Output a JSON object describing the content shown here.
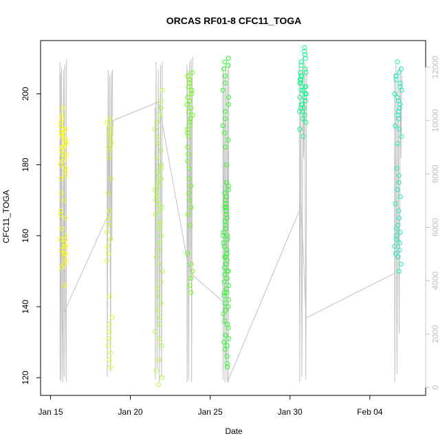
{
  "chart_data": {
    "type": "scatter",
    "title": "ORCAS RF01-8 CFC11_TOGA",
    "xlabel": "Date",
    "ylabel": "CFC11_TOGA",
    "x_range": [
      "2016-01-14T09:00",
      "2016-02-07T12:00"
    ],
    "x_ticks": [
      {
        "date": "2016-01-15",
        "label": "Jan 15"
      },
      {
        "date": "2016-01-20",
        "label": "Jan 20"
      },
      {
        "date": "2016-01-25",
        "label": "Jan 25"
      },
      {
        "date": "2016-01-30",
        "label": "Jan 30"
      },
      {
        "date": "2016-02-04",
        "label": "Feb 04"
      }
    ],
    "ylim": [
      115,
      215
    ],
    "y_ticks": [
      120,
      140,
      160,
      180,
      200
    ],
    "y2lim": [
      -300,
      13000
    ],
    "y2_ticks": [
      0,
      2000,
      4000,
      6000,
      8000,
      10000,
      12000
    ],
    "grid": false,
    "legend": "none",
    "colors": {
      "axis": "#000000",
      "altitude_line": "#c0c0c0",
      "right_axis": "#c0c0c0"
    },
    "secondary_line_description": "altitude trace (right axis)",
    "flights": [
      {
        "start": "2016-01-15T14:00",
        "end": "2016-01-16T00:00",
        "color": "#ffff00",
        "cfc11_values": [
          146,
          151,
          152,
          153,
          154,
          155,
          156,
          157,
          158,
          159,
          160,
          162,
          165,
          167,
          170,
          172,
          176,
          177,
          178,
          179,
          180,
          181,
          182,
          183,
          184,
          185,
          186,
          187,
          188,
          189,
          190,
          191,
          192,
          193,
          194,
          196,
          183,
          185,
          187,
          189,
          181,
          179,
          186,
          188,
          190,
          155,
          157,
          159,
          152,
          166
        ],
        "alt_profile": [
          [
            0,
            12200
          ],
          [
            0.03,
            300
          ],
          [
            0.1,
            11800
          ],
          [
            0.18,
            200
          ],
          [
            0.25,
            12000
          ],
          [
            0.35,
            2500
          ],
          [
            0.45,
            200
          ],
          [
            0.55,
            11900
          ],
          [
            0.65,
            400
          ],
          [
            0.75,
            12100
          ],
          [
            0.85,
            3000
          ],
          [
            0.95,
            200
          ],
          [
            1,
            12300
          ]
        ]
      },
      {
        "start": "2016-01-18T13:00",
        "end": "2016-01-18T21:00",
        "color": "#d4ff1a",
        "cfc11_values": [
          123,
          125,
          127,
          129,
          131,
          133,
          135,
          137,
          143,
          153,
          155,
          157,
          159,
          161,
          163,
          165,
          167,
          172,
          176,
          182,
          184,
          186,
          188,
          190,
          192,
          193,
          189,
          191,
          187,
          185
        ],
        "alt_profile": [
          [
            0,
            9800
          ],
          [
            0.05,
            400
          ],
          [
            0.2,
            11900
          ],
          [
            0.35,
            6000
          ],
          [
            0.5,
            11700
          ],
          [
            0.65,
            600
          ],
          [
            0.8,
            11800
          ],
          [
            0.9,
            5500
          ],
          [
            1,
            11900
          ]
        ]
      },
      {
        "start": "2016-01-21T13:00",
        "end": "2016-01-22T00:00",
        "color": "#aaff33",
        "cfc11_values": [
          118,
          120,
          122,
          125,
          129,
          131,
          133,
          135,
          137,
          139,
          141,
          143,
          145,
          147,
          150,
          152,
          154,
          156,
          158,
          160,
          162,
          164,
          166,
          168,
          170,
          172,
          174,
          176,
          178,
          180,
          182,
          184,
          186,
          188,
          190,
          192,
          194,
          196,
          198,
          201,
          177,
          179,
          175,
          173,
          171,
          169,
          167,
          163
        ],
        "alt_profile": [
          [
            0,
            10500
          ],
          [
            0.05,
            300
          ],
          [
            0.15,
            12200
          ],
          [
            0.3,
            700
          ],
          [
            0.45,
            11900
          ],
          [
            0.6,
            200
          ],
          [
            0.75,
            12100
          ],
          [
            0.9,
            400
          ],
          [
            1,
            12200
          ]
        ]
      },
      {
        "start": "2016-01-23T13:00",
        "end": "2016-01-23T22:00",
        "color": "#66ff00",
        "cfc11_values": [
          144,
          146,
          148,
          150,
          152,
          155,
          163,
          166,
          168,
          170,
          172,
          174,
          176,
          179,
          183,
          188,
          190,
          192,
          194,
          196,
          198,
          200,
          201,
          202,
          203,
          204,
          205,
          206,
          195,
          197,
          193,
          191,
          189,
          199,
          185,
          181
        ],
        "alt_profile": [
          [
            0,
            12100
          ],
          [
            0.04,
            200
          ],
          [
            0.15,
            11900
          ],
          [
            0.3,
            300
          ],
          [
            0.45,
            12200
          ],
          [
            0.55,
            4000
          ],
          [
            0.7,
            12300
          ],
          [
            0.8,
            200
          ],
          [
            0.9,
            11800
          ],
          [
            1,
            12400
          ]
        ]
      },
      {
        "start": "2016-01-25T19:00",
        "end": "2016-01-26T04:00",
        "color": "#22ff22",
        "cfc11_values": [
          123,
          124,
          126,
          128,
          130,
          132,
          134,
          136,
          138,
          140,
          141,
          142,
          143,
          144,
          145,
          146,
          147,
          148,
          149,
          150,
          151,
          152,
          153,
          154,
          155,
          156,
          157,
          158,
          159,
          160,
          161,
          162,
          163,
          164,
          165,
          166,
          167,
          168,
          169,
          170,
          171,
          172,
          173,
          174,
          175,
          185,
          187,
          189,
          191,
          193,
          195,
          197,
          199,
          201,
          203,
          205,
          207,
          208,
          209,
          210,
          129,
          131,
          135,
          139,
          144,
          150,
          154,
          160,
          168,
          180
        ],
        "alt_profile": [
          [
            0,
            12000
          ],
          [
            0.05,
            300
          ],
          [
            0.2,
            11800
          ],
          [
            0.35,
            200
          ],
          [
            0.5,
            12100
          ],
          [
            0.65,
            800
          ],
          [
            0.8,
            11900
          ],
          [
            0.92,
            200
          ],
          [
            1,
            12200
          ]
        ]
      },
      {
        "start": "2016-01-30T14:00",
        "end": "2016-01-31T01:00",
        "color": "#00ff88",
        "cfc11_values": [
          188,
          190,
          192,
          194,
          195,
          196,
          197,
          198,
          199,
          200,
          201,
          202,
          203,
          204,
          205,
          206,
          207,
          208,
          209,
          210,
          211,
          212,
          213,
          196,
          198,
          200,
          202,
          204,
          206,
          199,
          201,
          197,
          195,
          193,
          203,
          205
        ],
        "alt_profile": [
          [
            0,
            12300
          ],
          [
            0.05,
            200
          ],
          [
            0.2,
            11900
          ],
          [
            0.35,
            400
          ],
          [
            0.5,
            12400
          ],
          [
            0.6,
            8600
          ],
          [
            0.75,
            12200
          ],
          [
            0.9,
            300
          ],
          [
            1,
            12000
          ]
        ]
      },
      {
        "start": "2016-02-05T13:00",
        "end": "2016-02-06T00:00",
        "color": "#11eebb",
        "cfc11_values": [
          150,
          152,
          155,
          157,
          159,
          161,
          163,
          165,
          167,
          169,
          171,
          173,
          175,
          177,
          179,
          191,
          193,
          195,
          197,
          199,
          200,
          201,
          202,
          203,
          204,
          205,
          206,
          207,
          209,
          186,
          188,
          190,
          194,
          196,
          198,
          154,
          156,
          158,
          160,
          162
        ],
        "alt_profile": [
          [
            0,
            11800
          ],
          [
            0.05,
            200
          ],
          [
            0.2,
            12100
          ],
          [
            0.35,
            500
          ],
          [
            0.5,
            11900
          ],
          [
            0.65,
            2000
          ],
          [
            0.8,
            12000
          ],
          [
            0.9,
            8600
          ],
          [
            1,
            11700
          ]
        ]
      }
    ],
    "connector_points": [
      {
        "date": "2016-01-15T20:00",
        "alt": 2800
      },
      {
        "date": "2016-01-18T17:00",
        "alt": 6600
      },
      {
        "date": "2016-01-18T22:00",
        "alt": 10000
      },
      {
        "date": "2016-01-21T18:00",
        "alt": 10700
      },
      {
        "date": "2016-01-23T14:00",
        "alt": 4700
      },
      {
        "date": "2016-01-23T22:00",
        "alt": 4200
      },
      {
        "date": "2016-01-25T20:00",
        "alt": 3200
      },
      {
        "date": "2016-01-26T02:00",
        "alt": 200
      },
      {
        "date": "2016-01-30T17:00",
        "alt": 6800
      },
      {
        "date": "2016-01-31T00:00",
        "alt": 2600
      },
      {
        "date": "2016-02-05T15:00",
        "alt": 4300
      }
    ]
  }
}
